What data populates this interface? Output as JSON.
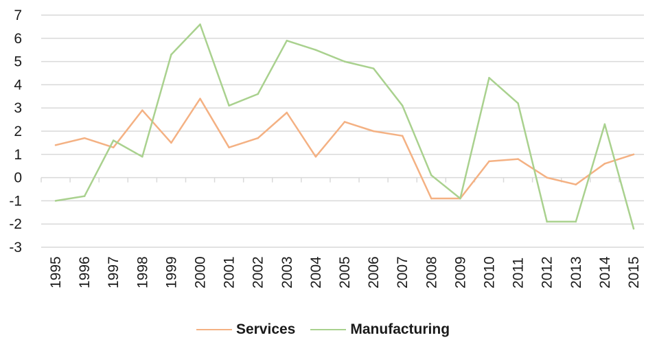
{
  "chart_data": {
    "type": "line",
    "title": "",
    "xlabel": "",
    "ylabel": "",
    "categories": [
      "1995",
      "1996",
      "1997",
      "1998",
      "1999",
      "2000",
      "2001",
      "2002",
      "2003",
      "2004",
      "2005",
      "2006",
      "2007",
      "2008",
      "2009",
      "2010",
      "2011",
      "2012",
      "2013",
      "2014",
      "2015"
    ],
    "y_ticks": [
      "7",
      "6",
      "5",
      "4",
      "3",
      "2",
      "1",
      "0",
      "-1",
      "-2",
      "-3"
    ],
    "ylim": [
      -3,
      7
    ],
    "grid": true,
    "legend_position": "bottom",
    "series": [
      {
        "name": "Services",
        "color": "#f4b183",
        "values": [
          1.4,
          1.7,
          1.3,
          2.9,
          1.5,
          3.4,
          1.3,
          1.7,
          2.8,
          0.9,
          2.4,
          2.0,
          1.8,
          -0.9,
          -0.9,
          0.7,
          0.8,
          0.0,
          -0.3,
          0.6,
          1.0
        ]
      },
      {
        "name": "Manufacturing",
        "color": "#a9d18e",
        "values": [
          -1.0,
          -0.8,
          1.6,
          0.9,
          5.3,
          6.6,
          3.1,
          3.6,
          5.9,
          5.5,
          5.0,
          4.7,
          3.1,
          0.1,
          -0.9,
          4.3,
          3.2,
          -1.9,
          -1.9,
          2.3,
          -2.2
        ]
      }
    ]
  }
}
